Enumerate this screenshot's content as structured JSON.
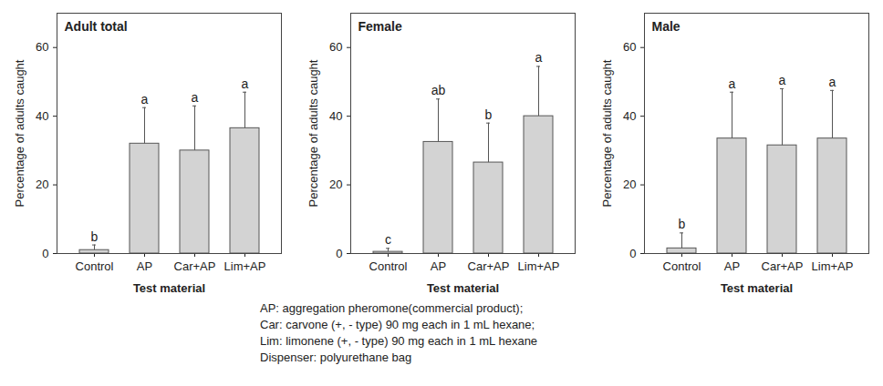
{
  "chart_data": [
    {
      "type": "bar",
      "title": "Adult total",
      "categories": [
        "Control",
        "AP",
        "Car+AP",
        "Lim+AP"
      ],
      "values": [
        1,
        32,
        30,
        36.5
      ],
      "errors": [
        1.5,
        10.5,
        13,
        10.5
      ],
      "letters": [
        "b",
        "a",
        "a",
        "a"
      ],
      "color": "#d3d3d3",
      "ylim": [
        0,
        70
      ],
      "yticks": [
        0,
        20,
        40,
        60
      ],
      "xlabel": "Test material",
      "ylabel": "Percentage of adults caught"
    },
    {
      "type": "bar",
      "title": "Female",
      "categories": [
        "Control",
        "AP",
        "Car+AP",
        "Lim+AP"
      ],
      "values": [
        0.5,
        32.5,
        26.5,
        40
      ],
      "errors": [
        1,
        12.5,
        11.5,
        14.5
      ],
      "letters": [
        "c",
        "ab",
        "b",
        "a"
      ],
      "color": "#d3d3d3",
      "ylim": [
        0,
        70
      ],
      "yticks": [
        0,
        20,
        40,
        60
      ],
      "xlabel": "Test material",
      "ylabel": "Percentage of adults caught"
    },
    {
      "type": "bar",
      "title": "Male",
      "categories": [
        "Control",
        "AP",
        "Car+AP",
        "Lim+AP"
      ],
      "values": [
        1.5,
        33.5,
        31.5,
        33.5
      ],
      "errors": [
        4.5,
        13.5,
        16.5,
        14
      ],
      "letters": [
        "b",
        "a",
        "a",
        "a"
      ],
      "color": "#d3d3d3",
      "ylim": [
        0,
        70
      ],
      "yticks": [
        0,
        20,
        40,
        60
      ],
      "xlabel": "Test material",
      "ylabel": "Percentage of adults caught"
    }
  ],
  "caption": [
    "AP: aggregation pheromone(commercial product);",
    "Car: carvone (+, - type) 90 mg each in 1 mL hexane;",
    "Lim: limonene (+, - type) 90 mg each in 1 mL hexane",
    "Dispenser: polyurethane bag"
  ]
}
